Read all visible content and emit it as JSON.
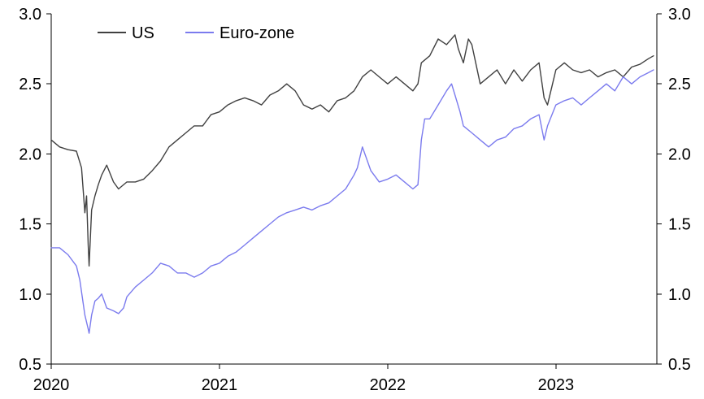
{
  "chart_data": {
    "type": "line",
    "title": "",
    "xlabel": "",
    "ylabel": "",
    "x_ticks": [
      "2020",
      "2021",
      "2022",
      "2023"
    ],
    "x_range": [
      2020.0,
      2023.6
    ],
    "y_ticks": [
      "0.5",
      "1.0",
      "1.5",
      "2.0",
      "2.5",
      "3.0"
    ],
    "ylim": [
      0.5,
      3.0
    ],
    "secondary_y_ticks": [
      "0.5",
      "1.0",
      "1.5",
      "2.0",
      "2.5",
      "3.0"
    ],
    "grid": false,
    "legend_position": "top-left",
    "series": [
      {
        "name": "US",
        "color": "#404040",
        "points": [
          [
            2020.0,
            2.1
          ],
          [
            2020.05,
            2.05
          ],
          [
            2020.1,
            2.03
          ],
          [
            2020.15,
            2.02
          ],
          [
            2020.18,
            1.9
          ],
          [
            2020.2,
            1.58
          ],
          [
            2020.21,
            1.7
          ],
          [
            2020.22,
            1.35
          ],
          [
            2020.225,
            1.2
          ],
          [
            2020.24,
            1.6
          ],
          [
            2020.26,
            1.7
          ],
          [
            2020.28,
            1.78
          ],
          [
            2020.3,
            1.85
          ],
          [
            2020.33,
            1.92
          ],
          [
            2020.37,
            1.8
          ],
          [
            2020.4,
            1.75
          ],
          [
            2020.45,
            1.8
          ],
          [
            2020.5,
            1.8
          ],
          [
            2020.55,
            1.82
          ],
          [
            2020.6,
            1.88
          ],
          [
            2020.65,
            1.95
          ],
          [
            2020.7,
            2.05
          ],
          [
            2020.75,
            2.1
          ],
          [
            2020.8,
            2.15
          ],
          [
            2020.85,
            2.2
          ],
          [
            2020.9,
            2.2
          ],
          [
            2020.95,
            2.28
          ],
          [
            2021.0,
            2.3
          ],
          [
            2021.05,
            2.35
          ],
          [
            2021.1,
            2.38
          ],
          [
            2021.15,
            2.4
          ],
          [
            2021.2,
            2.38
          ],
          [
            2021.25,
            2.35
          ],
          [
            2021.3,
            2.42
          ],
          [
            2021.35,
            2.45
          ],
          [
            2021.4,
            2.5
          ],
          [
            2021.45,
            2.45
          ],
          [
            2021.5,
            2.35
          ],
          [
            2021.55,
            2.32
          ],
          [
            2021.6,
            2.35
          ],
          [
            2021.65,
            2.3
          ],
          [
            2021.7,
            2.38
          ],
          [
            2021.75,
            2.4
          ],
          [
            2021.8,
            2.45
          ],
          [
            2021.85,
            2.55
          ],
          [
            2021.9,
            2.6
          ],
          [
            2021.95,
            2.55
          ],
          [
            2022.0,
            2.5
          ],
          [
            2022.05,
            2.55
          ],
          [
            2022.1,
            2.5
          ],
          [
            2022.15,
            2.45
          ],
          [
            2022.18,
            2.5
          ],
          [
            2022.2,
            2.65
          ],
          [
            2022.25,
            2.7
          ],
          [
            2022.3,
            2.82
          ],
          [
            2022.35,
            2.78
          ],
          [
            2022.4,
            2.85
          ],
          [
            2022.42,
            2.75
          ],
          [
            2022.45,
            2.65
          ],
          [
            2022.48,
            2.82
          ],
          [
            2022.5,
            2.78
          ],
          [
            2022.55,
            2.5
          ],
          [
            2022.6,
            2.55
          ],
          [
            2022.65,
            2.6
          ],
          [
            2022.7,
            2.5
          ],
          [
            2022.75,
            2.6
          ],
          [
            2022.8,
            2.52
          ],
          [
            2022.85,
            2.6
          ],
          [
            2022.9,
            2.65
          ],
          [
            2022.93,
            2.4
          ],
          [
            2022.95,
            2.35
          ],
          [
            2022.98,
            2.5
          ],
          [
            2023.0,
            2.6
          ],
          [
            2023.05,
            2.65
          ],
          [
            2023.1,
            2.6
          ],
          [
            2023.15,
            2.58
          ],
          [
            2023.2,
            2.6
          ],
          [
            2023.25,
            2.55
          ],
          [
            2023.3,
            2.58
          ],
          [
            2023.35,
            2.6
          ],
          [
            2023.4,
            2.55
          ],
          [
            2023.45,
            2.62
          ],
          [
            2023.5,
            2.64
          ],
          [
            2023.55,
            2.68
          ],
          [
            2023.58,
            2.7
          ]
        ]
      },
      {
        "name": "Euro-zone",
        "color": "#7b7bee",
        "points": [
          [
            2020.0,
            1.33
          ],
          [
            2020.05,
            1.33
          ],
          [
            2020.1,
            1.28
          ],
          [
            2020.15,
            1.2
          ],
          [
            2020.17,
            1.1
          ],
          [
            2020.2,
            0.85
          ],
          [
            2020.22,
            0.75
          ],
          [
            2020.225,
            0.72
          ],
          [
            2020.24,
            0.85
          ],
          [
            2020.26,
            0.95
          ],
          [
            2020.28,
            0.97
          ],
          [
            2020.3,
            1.0
          ],
          [
            2020.33,
            0.9
          ],
          [
            2020.37,
            0.88
          ],
          [
            2020.4,
            0.86
          ],
          [
            2020.43,
            0.9
          ],
          [
            2020.45,
            0.98
          ],
          [
            2020.5,
            1.05
          ],
          [
            2020.55,
            1.1
          ],
          [
            2020.6,
            1.15
          ],
          [
            2020.65,
            1.22
          ],
          [
            2020.7,
            1.2
          ],
          [
            2020.75,
            1.15
          ],
          [
            2020.8,
            1.15
          ],
          [
            2020.85,
            1.12
          ],
          [
            2020.9,
            1.15
          ],
          [
            2020.95,
            1.2
          ],
          [
            2021.0,
            1.22
          ],
          [
            2021.05,
            1.27
          ],
          [
            2021.1,
            1.3
          ],
          [
            2021.15,
            1.35
          ],
          [
            2021.2,
            1.4
          ],
          [
            2021.25,
            1.45
          ],
          [
            2021.3,
            1.5
          ],
          [
            2021.35,
            1.55
          ],
          [
            2021.4,
            1.58
          ],
          [
            2021.45,
            1.6
          ],
          [
            2021.5,
            1.62
          ],
          [
            2021.55,
            1.6
          ],
          [
            2021.6,
            1.63
          ],
          [
            2021.65,
            1.65
          ],
          [
            2021.7,
            1.7
          ],
          [
            2021.75,
            1.75
          ],
          [
            2021.8,
            1.85
          ],
          [
            2021.82,
            1.9
          ],
          [
            2021.85,
            2.05
          ],
          [
            2021.9,
            1.88
          ],
          [
            2021.95,
            1.8
          ],
          [
            2022.0,
            1.82
          ],
          [
            2022.05,
            1.85
          ],
          [
            2022.1,
            1.8
          ],
          [
            2022.15,
            1.75
          ],
          [
            2022.18,
            1.78
          ],
          [
            2022.2,
            2.1
          ],
          [
            2022.22,
            2.25
          ],
          [
            2022.25,
            2.25
          ],
          [
            2022.3,
            2.35
          ],
          [
            2022.35,
            2.45
          ],
          [
            2022.38,
            2.5
          ],
          [
            2022.4,
            2.42
          ],
          [
            2022.43,
            2.3
          ],
          [
            2022.45,
            2.2
          ],
          [
            2022.5,
            2.15
          ],
          [
            2022.55,
            2.1
          ],
          [
            2022.6,
            2.05
          ],
          [
            2022.65,
            2.1
          ],
          [
            2022.7,
            2.12
          ],
          [
            2022.75,
            2.18
          ],
          [
            2022.8,
            2.2
          ],
          [
            2022.85,
            2.25
          ],
          [
            2022.9,
            2.28
          ],
          [
            2022.93,
            2.1
          ],
          [
            2022.95,
            2.2
          ],
          [
            2023.0,
            2.35
          ],
          [
            2023.05,
            2.38
          ],
          [
            2023.1,
            2.4
          ],
          [
            2023.15,
            2.35
          ],
          [
            2023.2,
            2.4
          ],
          [
            2023.25,
            2.45
          ],
          [
            2023.3,
            2.5
          ],
          [
            2023.35,
            2.45
          ],
          [
            2023.4,
            2.55
          ],
          [
            2023.45,
            2.5
          ],
          [
            2023.5,
            2.55
          ],
          [
            2023.55,
            2.58
          ],
          [
            2023.58,
            2.6
          ]
        ]
      }
    ]
  }
}
